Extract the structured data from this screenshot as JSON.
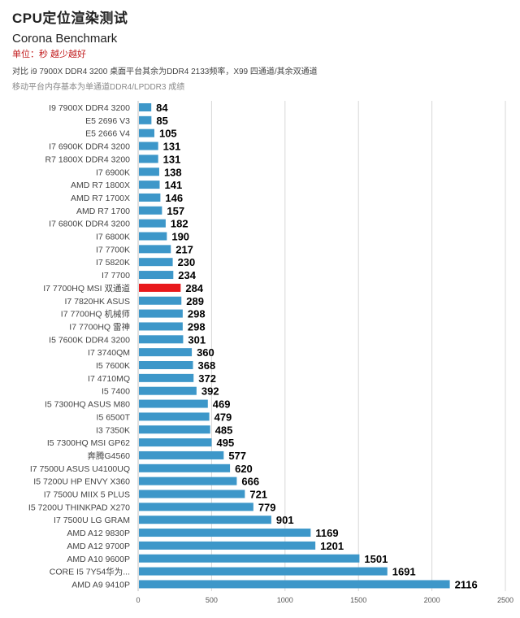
{
  "header": {
    "title": "CPU定位渲染测试",
    "subtitle": "Corona Benchmark",
    "unit": "单位：秒 越少越好",
    "note1": "对比 i9 7900X DDR4 3200 桌面平台其余为DDR4 2133频率，X99 四通道/其余双通道",
    "note2": "移动平台内存基本为单通道DDR4/LPDDR3 成绩"
  },
  "colors": {
    "bar": "#3d97c9",
    "highlight": "#e8181c",
    "grid": "#d7d7d7",
    "label": "#444444",
    "value": "#000000"
  },
  "chart_data": {
    "type": "bar",
    "orientation": "horizontal",
    "categories": [
      "I9 7900X DDR4 3200",
      "E5 2696 V3",
      "E5 2666 V4",
      "I7 6900K DDR4 3200",
      "R7 1800X DDR4 3200",
      "I7 6900K",
      "AMD R7 1800X",
      "AMD R7 1700X",
      "AMD R7 1700",
      "I7 6800K DDR4 3200",
      "I7 6800K",
      "I7 7700K",
      "I7 5820K",
      "I7 7700",
      "I7 7700HQ MSI 双通道",
      "I7 7820HK ASUS",
      "I7 7700HQ  机械师",
      "I7 7700HQ 雷神",
      "I5 7600K DDR4 3200",
      "I7 3740QM",
      "I5 7600K",
      "I7 4710MQ",
      "I5 7400",
      "I5 7300HQ ASUS M80",
      "I5 6500T",
      "I3 7350K",
      "I5 7300HQ MSI GP62",
      "奔腾G4560",
      "I7 7500U ASUS U4100UQ",
      "I5 7200U HP ENVY X360",
      "I7 7500U MIIX 5 PLUS",
      "I5 7200U THINKPAD X270",
      "I7 7500U LG GRAM",
      "AMD A12  9830P",
      "AMD A12 9700P",
      "AMD A10 9600P",
      "CORE I5 7Y54华为...",
      "AMD A9  9410P"
    ],
    "values": [
      84,
      85,
      105,
      131,
      131,
      138,
      141,
      146,
      157,
      182,
      190,
      217,
      230,
      234,
      284,
      289,
      298,
      298,
      301,
      360,
      368,
      372,
      392,
      469,
      479,
      485,
      495,
      577,
      620,
      666,
      721,
      779,
      901,
      1169,
      1201,
      1501,
      1691,
      2116
    ],
    "highlight_index": 14,
    "xlim": [
      0,
      2500
    ],
    "xticks": [
      "0",
      "500",
      "1000",
      "1500",
      "2000",
      "2500"
    ],
    "grid": true
  }
}
